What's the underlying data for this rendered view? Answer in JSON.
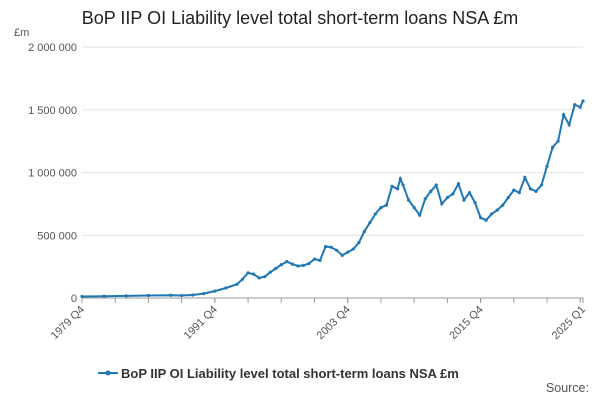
{
  "chart_data": {
    "type": "line",
    "title": "BoP IIP OI Liability level total short-term loans NSA £m",
    "y_unit": "£m",
    "xlabel": "",
    "ylabel": "",
    "ylim": [
      0,
      2000000
    ],
    "y_ticks": [
      {
        "value": 0,
        "label": "0"
      },
      {
        "value": 500000,
        "label": "500 000"
      },
      {
        "value": 1000000,
        "label": "1 000 000"
      },
      {
        "value": 1500000,
        "label": "1 500 000"
      },
      {
        "value": 2000000,
        "label": "2 000 000"
      }
    ],
    "x_ticks": [
      "1979 Q4",
      "1991 Q4",
      "2003 Q4",
      "2015 Q4",
      "2025 Q1"
    ],
    "grid": true,
    "legend_position": "bottom",
    "source_label": "Source:",
    "color": "#1f77b4",
    "series": [
      {
        "name": "BoP IIP OI Liability level total short-term loans NSA £m",
        "points": [
          [
            "1979 Q4",
            12000
          ],
          [
            "1981 Q4",
            14000
          ],
          [
            "1983 Q4",
            17000
          ],
          [
            "1985 Q4",
            20000
          ],
          [
            "1987 Q4",
            22000
          ],
          [
            "1988 Q4",
            20000
          ],
          [
            "1989 Q4",
            24000
          ],
          [
            "1990 Q4",
            35000
          ],
          [
            "1991 Q4",
            55000
          ],
          [
            "1992 Q4",
            80000
          ],
          [
            "1993 Q4",
            110000
          ],
          [
            "1994 Q2",
            150000
          ],
          [
            "1994 Q4",
            200000
          ],
          [
            "1995 Q2",
            190000
          ],
          [
            "1995 Q4",
            160000
          ],
          [
            "1996 Q2",
            170000
          ],
          [
            "1996 Q4",
            205000
          ],
          [
            "1997 Q2",
            235000
          ],
          [
            "1997 Q4",
            265000
          ],
          [
            "1998 Q2",
            290000
          ],
          [
            "1998 Q4",
            270000
          ],
          [
            "1999 Q2",
            255000
          ],
          [
            "1999 Q4",
            260000
          ],
          [
            "2000 Q2",
            275000
          ],
          [
            "2000 Q4",
            310000
          ],
          [
            "2001 Q2",
            300000
          ],
          [
            "2001 Q4",
            410000
          ],
          [
            "2002 Q2",
            405000
          ],
          [
            "2002 Q4",
            380000
          ],
          [
            "2003 Q2",
            340000
          ],
          [
            "2003 Q4",
            365000
          ],
          [
            "2004 Q2",
            390000
          ],
          [
            "2004 Q4",
            440000
          ],
          [
            "2005 Q2",
            530000
          ],
          [
            "2005 Q4",
            600000
          ],
          [
            "2006 Q2",
            670000
          ],
          [
            "2006 Q4",
            720000
          ],
          [
            "2007 Q2",
            740000
          ],
          [
            "2007 Q4",
            890000
          ],
          [
            "2008 Q2",
            870000
          ],
          [
            "2008 Q3",
            950000
          ],
          [
            "2008 Q4",
            900000
          ],
          [
            "2009 Q2",
            780000
          ],
          [
            "2009 Q4",
            720000
          ],
          [
            "2010 Q2",
            660000
          ],
          [
            "2010 Q4",
            790000
          ],
          [
            "2011 Q2",
            850000
          ],
          [
            "2011 Q4",
            900000
          ],
          [
            "2012 Q2",
            750000
          ],
          [
            "2012 Q4",
            800000
          ],
          [
            "2013 Q2",
            830000
          ],
          [
            "2013 Q4",
            910000
          ],
          [
            "2014 Q2",
            780000
          ],
          [
            "2014 Q4",
            840000
          ],
          [
            "2015 Q2",
            760000
          ],
          [
            "2015 Q4",
            640000
          ],
          [
            "2016 Q2",
            620000
          ],
          [
            "2016 Q4",
            670000
          ],
          [
            "2017 Q2",
            700000
          ],
          [
            "2017 Q4",
            740000
          ],
          [
            "2018 Q2",
            800000
          ],
          [
            "2018 Q4",
            860000
          ],
          [
            "2019 Q2",
            840000
          ],
          [
            "2019 Q4",
            960000
          ],
          [
            "2020 Q2",
            870000
          ],
          [
            "2020 Q4",
            850000
          ],
          [
            "2021 Q2",
            900000
          ],
          [
            "2021 Q4",
            1050000
          ],
          [
            "2022 Q2",
            1200000
          ],
          [
            "2022 Q4",
            1250000
          ],
          [
            "2023 Q2",
            1460000
          ],
          [
            "2023 Q4",
            1380000
          ],
          [
            "2024 Q2",
            1540000
          ],
          [
            "2024 Q4",
            1520000
          ],
          [
            "2025 Q1",
            1570000
          ]
        ]
      }
    ]
  }
}
